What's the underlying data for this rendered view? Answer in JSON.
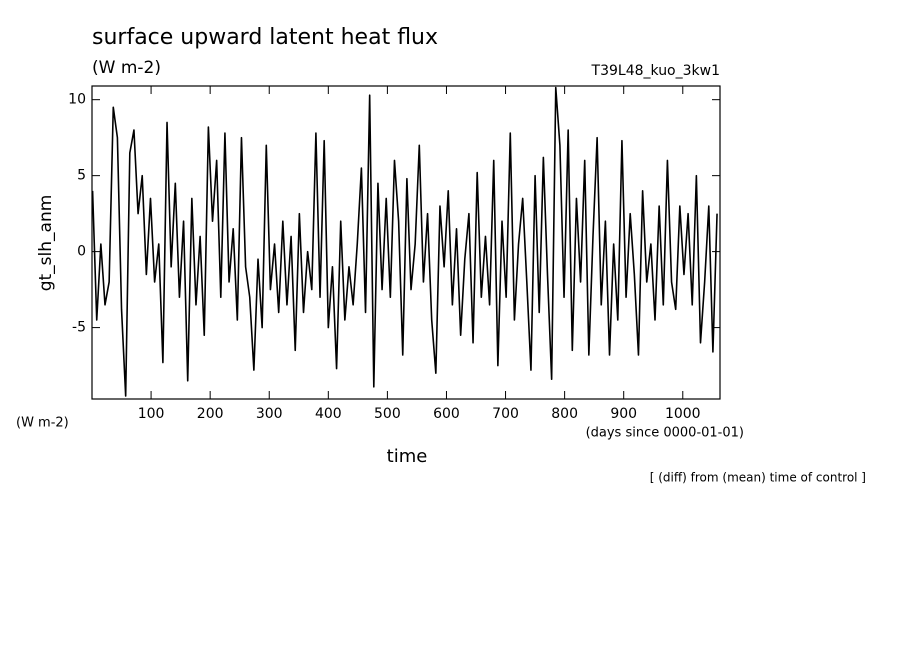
{
  "chart_data": {
    "type": "line",
    "title": "surface upward latent heat flux",
    "subtitle": "(W m-2)",
    "run_label": "T39L48_kuo_3kw1",
    "ylabel": "gt_slh_anm",
    "y_unit_label": "(W m-2)",
    "xlabel": "time",
    "x_unit_label": "(days since 0000-01-01)",
    "footnote": "[ (diff) from (mean) time of control ]",
    "color": "#000000",
    "xlim": [
      0,
      1063
    ],
    "ylim": [
      -9.7,
      10.9
    ],
    "xticks": [
      100,
      200,
      300,
      400,
      500,
      600,
      700,
      800,
      900,
      1000
    ],
    "yticks": [
      -5,
      0,
      5,
      10
    ],
    "x": [
      1,
      8,
      15,
      22,
      29,
      36,
      43,
      50,
      57,
      64,
      71,
      78,
      85,
      92,
      99,
      106,
      113,
      120,
      127,
      134,
      141,
      148,
      155,
      162,
      169,
      176,
      183,
      190,
      197,
      204,
      211,
      218,
      225,
      232,
      239,
      246,
      253,
      260,
      267,
      274,
      281,
      288,
      295,
      302,
      309,
      316,
      323,
      330,
      337,
      344,
      351,
      358,
      365,
      372,
      379,
      386,
      393,
      400,
      407,
      414,
      421,
      428,
      435,
      442,
      449,
      456,
      463,
      470,
      477,
      484,
      491,
      498,
      505,
      512,
      519,
      526,
      533,
      540,
      547,
      554,
      561,
      568,
      575,
      582,
      589,
      596,
      603,
      610,
      617,
      624,
      631,
      638,
      645,
      652,
      659,
      666,
      673,
      680,
      687,
      694,
      701,
      708,
      715,
      722,
      729,
      736,
      743,
      750,
      757,
      764,
      771,
      778,
      785,
      792,
      799,
      806,
      813,
      820,
      827,
      834,
      841,
      848,
      855,
      862,
      869,
      876,
      883,
      890,
      897,
      904,
      911,
      918,
      925,
      932,
      939,
      946,
      953,
      960,
      967,
      974,
      981,
      988,
      995,
      1002,
      1009,
      1016,
      1023,
      1030,
      1037,
      1044,
      1051,
      1058
    ],
    "values": [
      4.0,
      -4.5,
      0.5,
      -3.5,
      -2.0,
      9.5,
      7.5,
      -3.8,
      -9.5,
      6.5,
      8.0,
      2.5,
      5.0,
      -1.5,
      3.5,
      -2.0,
      0.5,
      -7.3,
      8.5,
      -1.0,
      4.5,
      -3.0,
      2.0,
      -8.5,
      3.5,
      -3.5,
      1.0,
      -5.5,
      8.2,
      2.0,
      6.0,
      -3.0,
      7.8,
      -2.0,
      1.5,
      -4.5,
      7.5,
      -1.0,
      -3.0,
      -7.8,
      -0.5,
      -5.0,
      7.0,
      -2.5,
      0.5,
      -4.0,
      2.0,
      -3.5,
      1.0,
      -6.5,
      2.5,
      -4.0,
      0.0,
      -2.5,
      7.8,
      -3.0,
      7.3,
      -5.0,
      -1.0,
      -7.7,
      2.0,
      -4.5,
      -1.0,
      -3.5,
      0.5,
      5.5,
      -4.0,
      10.3,
      -8.9,
      4.5,
      -2.5,
      3.5,
      -3.0,
      6.0,
      2.0,
      -6.8,
      4.8,
      -2.5,
      0.5,
      7.0,
      -2.0,
      2.5,
      -4.5,
      -8.0,
      3.0,
      -1.0,
      4.0,
      -3.5,
      1.5,
      -5.5,
      -0.5,
      2.5,
      -6.0,
      5.2,
      -3.0,
      1.0,
      -3.5,
      6.0,
      -7.5,
      2.0,
      -3.0,
      7.8,
      -4.5,
      0.5,
      3.5,
      -2.0,
      -7.8,
      5.0,
      -4.0,
      6.2,
      -1.5,
      -8.4,
      10.8,
      7.0,
      -3.0,
      8.0,
      -6.5,
      3.5,
      -2.0,
      6.0,
      -6.8,
      1.0,
      7.5,
      -3.5,
      2.0,
      -6.8,
      0.5,
      -4.5,
      7.3,
      -3.0,
      2.5,
      -1.5,
      -6.8,
      4.0,
      -2.0,
      0.5,
      -4.5,
      3.0,
      -3.5,
      6.0,
      -2.0,
      -3.8,
      3.0,
      -1.5,
      2.5,
      -3.5,
      5.0,
      -6.0,
      -2.0,
      3.0,
      -6.6,
      2.5
    ]
  }
}
